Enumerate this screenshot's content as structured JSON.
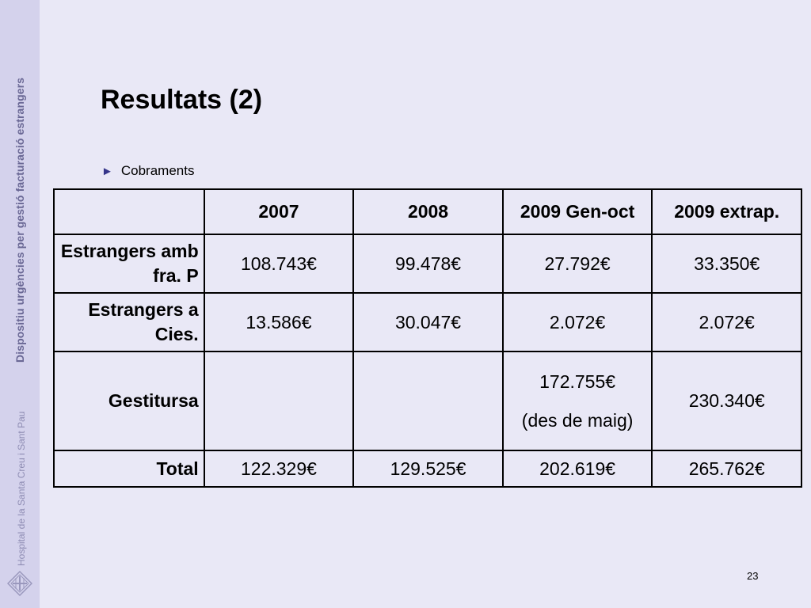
{
  "sidebar": {
    "title": "Dispositiu urgències per gestió facturació estrangers",
    "organization": "Hospital de la Santa Creu i Sant Pau",
    "logo_icon": "hospital-logo-icon"
  },
  "slide": {
    "title": "Resultats (2)",
    "bullet_marker": "►",
    "bullet": "Cobraments",
    "page_number": "23"
  },
  "table": {
    "headers": [
      "",
      "2007",
      "2008",
      "2009 Gen-oct",
      "2009 extrap."
    ],
    "rows": [
      {
        "label": "Estrangers amb fra. P",
        "values": [
          "108.743€",
          "99.478€",
          "27.792€",
          "33.350€"
        ]
      },
      {
        "label": "Estrangers a Cies.",
        "values": [
          "13.586€",
          "30.047€",
          "2.072€",
          "2.072€"
        ]
      },
      {
        "label": "Gestitursa",
        "values": [
          "",
          "",
          "172.755€",
          "230.340€"
        ],
        "note": "(des de maig)"
      },
      {
        "label": "Total",
        "values": [
          "122.329€",
          "129.525€",
          "202.619€",
          "265.762€"
        ]
      }
    ]
  },
  "colors": {
    "background": "#e9e8f6",
    "sidebar": "#d4d2ec",
    "sidebar_title": "#6a6895",
    "bullet_marker": "#35358a"
  }
}
